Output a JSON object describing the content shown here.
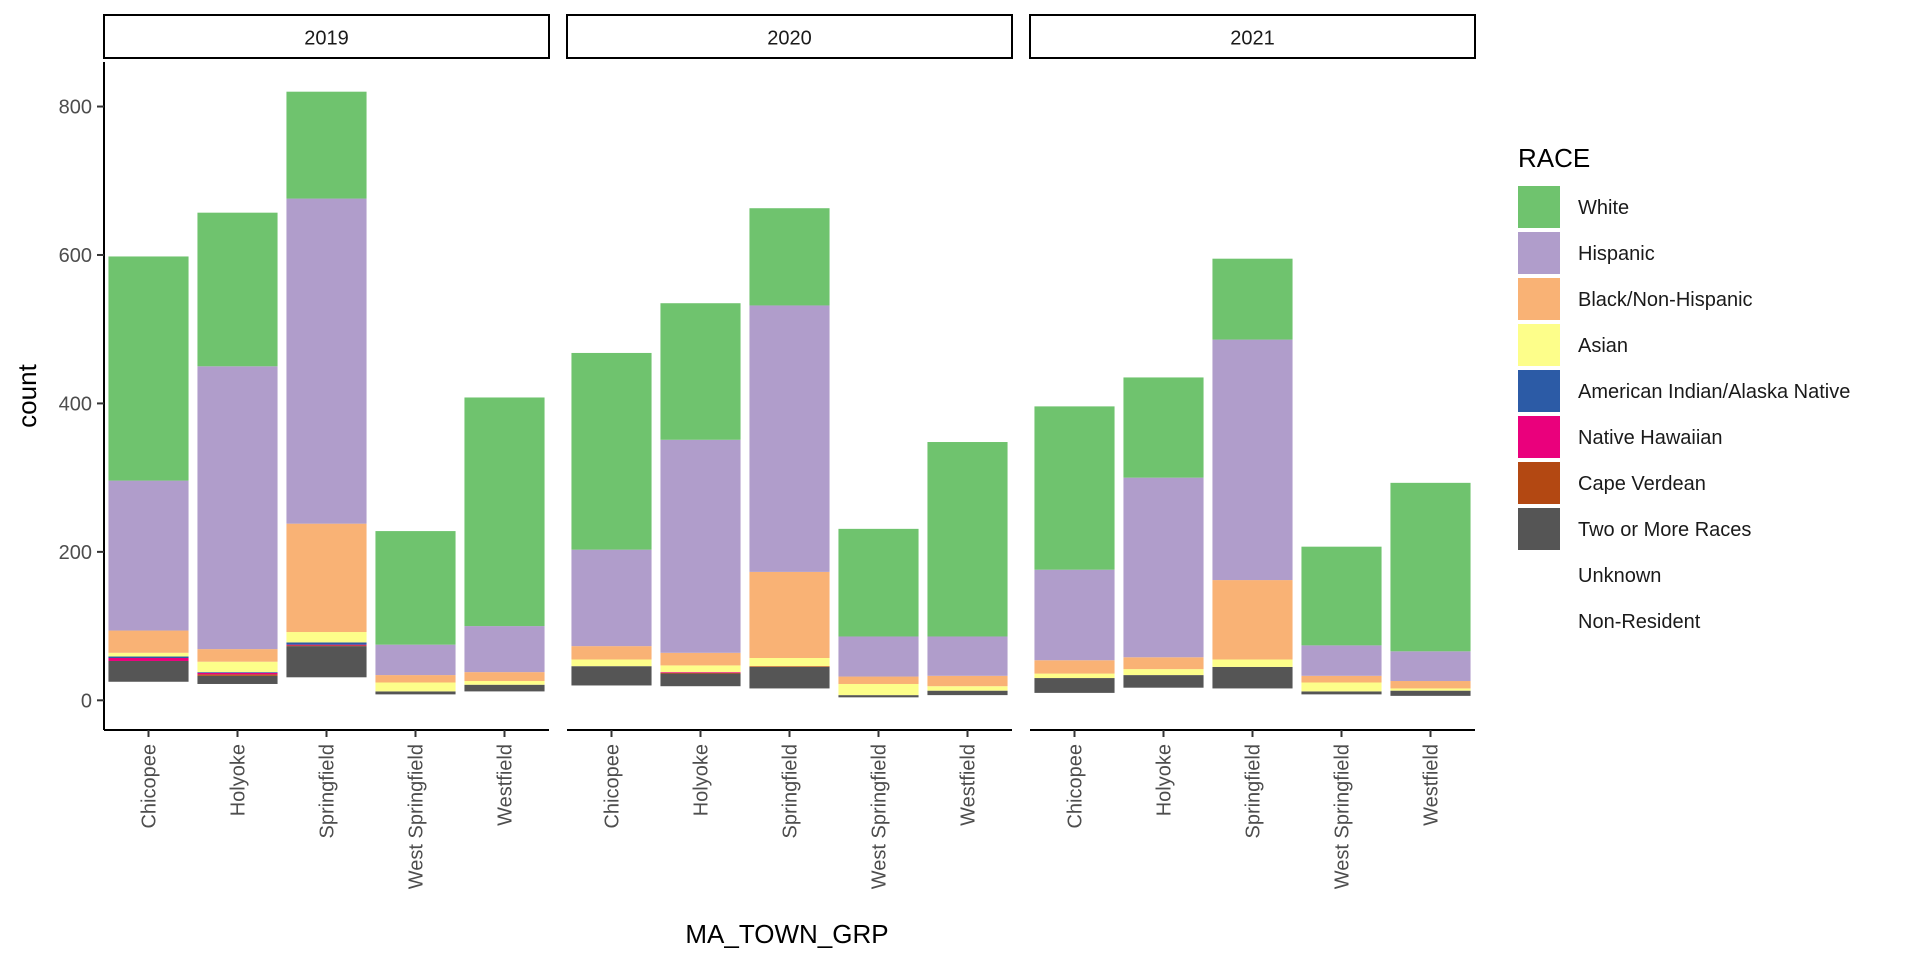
{
  "chart_data": {
    "type": "bar",
    "stacked": true,
    "facet_by": "year",
    "facets": [
      "2019",
      "2020",
      "2021"
    ],
    "categories": [
      "Chicopee",
      "Holyoke",
      "Springfield",
      "West Springfield",
      "Westfield"
    ],
    "xlabel": "MA_TOWN_GRP",
    "ylabel": "count",
    "ylim": [
      -40,
      860
    ],
    "yticks": [
      0,
      200,
      400,
      600,
      800
    ],
    "legend": {
      "title": "RACE",
      "placement": "right",
      "entries": [
        {
          "name": "White",
          "color": "#6fc36e",
          "swatch": true
        },
        {
          "name": "Hispanic",
          "color": "#b09dcb",
          "swatch": true
        },
        {
          "name": "Black/Non-Hispanic",
          "color": "#f9b275",
          "swatch": true
        },
        {
          "name": "Asian",
          "color": "#fdfe8a",
          "swatch": true
        },
        {
          "name": "American Indian/Alaska Native",
          "color": "#2c5ba6",
          "swatch": true
        },
        {
          "name": "Native Hawaiian",
          "color": "#ea007c",
          "swatch": true
        },
        {
          "name": "Cape Verdean",
          "color": "#b34812",
          "swatch": true
        },
        {
          "name": "Two or More Races",
          "color": "#555555",
          "swatch": true
        },
        {
          "name": "Unknown",
          "color": "#ffffff",
          "swatch": false
        },
        {
          "name": "Non-Resident",
          "color": "#ffffff",
          "swatch": false
        }
      ]
    },
    "stack_order_bottom_to_top": [
      "Non-Resident",
      "Unknown",
      "Two or More Races",
      "Cape Verdean",
      "Native Hawaiian",
      "American Indian/Alaska Native",
      "Asian",
      "Black/Non-Hispanic",
      "Hispanic",
      "White"
    ],
    "data": {
      "2019": {
        "Chicopee": {
          "Non-Resident": 0,
          "Unknown": 25,
          "Two or More Races": 28,
          "Cape Verdean": 0,
          "Native Hawaiian": 4,
          "American Indian/Alaska Native": 2,
          "Asian": 5,
          "Black/Non-Hispanic": 30,
          "Hispanic": 202,
          "White": 302
        },
        "Holyoke": {
          "Non-Resident": 0,
          "Unknown": 22,
          "Two or More Races": 11,
          "Cape Verdean": 2,
          "Native Hawaiian": 2,
          "American Indian/Alaska Native": 1,
          "Asian": 14,
          "Black/Non-Hispanic": 17,
          "Hispanic": 381,
          "White": 207
        },
        "Springfield": {
          "Non-Resident": 0,
          "Unknown": 31,
          "Two or More Races": 42,
          "Cape Verdean": 1,
          "Native Hawaiian": 1,
          "American Indian/Alaska Native": 3,
          "Asian": 14,
          "Black/Non-Hispanic": 146,
          "Hispanic": 438,
          "White": 144
        },
        "West Springfield": {
          "Non-Resident": 0,
          "Unknown": 8,
          "Two or More Races": 4,
          "Cape Verdean": 0,
          "Native Hawaiian": 0,
          "American Indian/Alaska Native": 0,
          "Asian": 12,
          "Black/Non-Hispanic": 10,
          "Hispanic": 41,
          "White": 153
        },
        "Westfield": {
          "Non-Resident": 0,
          "Unknown": 12,
          "Two or More Races": 9,
          "Cape Verdean": 0,
          "Native Hawaiian": 0,
          "American Indian/Alaska Native": 0,
          "Asian": 5,
          "Black/Non-Hispanic": 12,
          "Hispanic": 62,
          "White": 308
        }
      },
      "2020": {
        "Chicopee": {
          "Non-Resident": 0,
          "Unknown": 20,
          "Two or More Races": 26,
          "Cape Verdean": 0,
          "Native Hawaiian": 0,
          "American Indian/Alaska Native": 0,
          "Asian": 9,
          "Black/Non-Hispanic": 18,
          "Hispanic": 130,
          "White": 265
        },
        "Holyoke": {
          "Non-Resident": 0,
          "Unknown": 19,
          "Two or More Races": 17,
          "Cape Verdean": 1,
          "Native Hawaiian": 1,
          "American Indian/Alaska Native": 0,
          "Asian": 9,
          "Black/Non-Hispanic": 17,
          "Hispanic": 287,
          "White": 184
        },
        "Springfield": {
          "Non-Resident": 0,
          "Unknown": 16,
          "Two or More Races": 29,
          "Cape Verdean": 1,
          "Native Hawaiian": 0,
          "American Indian/Alaska Native": 0,
          "Asian": 11,
          "Black/Non-Hispanic": 116,
          "Hispanic": 359,
          "White": 131
        },
        "West Springfield": {
          "Non-Resident": 0,
          "Unknown": 4,
          "Two or More Races": 3,
          "Cape Verdean": 0,
          "Native Hawaiian": 0,
          "American Indian/Alaska Native": 0,
          "Asian": 15,
          "Black/Non-Hispanic": 10,
          "Hispanic": 54,
          "White": 145
        },
        "Westfield": {
          "Non-Resident": 0,
          "Unknown": 7,
          "Two or More Races": 6,
          "Cape Verdean": 0,
          "Native Hawaiian": 0,
          "American Indian/Alaska Native": 0,
          "Asian": 6,
          "Black/Non-Hispanic": 14,
          "Hispanic": 53,
          "White": 262
        }
      },
      "2021": {
        "Chicopee": {
          "Non-Resident": 0,
          "Unknown": 10,
          "Two or More Races": 20,
          "Cape Verdean": 0,
          "Native Hawaiian": 0,
          "American Indian/Alaska Native": 0,
          "Asian": 6,
          "Black/Non-Hispanic": 18,
          "Hispanic": 122,
          "White": 220
        },
        "Holyoke": {
          "Non-Resident": 0,
          "Unknown": 17,
          "Two or More Races": 17,
          "Cape Verdean": 0,
          "Native Hawaiian": 0,
          "American Indian/Alaska Native": 0,
          "Asian": 8,
          "Black/Non-Hispanic": 16,
          "Hispanic": 242,
          "White": 135
        },
        "Springfield": {
          "Non-Resident": 0,
          "Unknown": 16,
          "Two or More Races": 29,
          "Cape Verdean": 0,
          "Native Hawaiian": 0,
          "American Indian/Alaska Native": 0,
          "Asian": 10,
          "Black/Non-Hispanic": 107,
          "Hispanic": 324,
          "White": 109
        },
        "West Springfield": {
          "Non-Resident": 0,
          "Unknown": 8,
          "Two or More Races": 4,
          "Cape Verdean": 0,
          "Native Hawaiian": 0,
          "American Indian/Alaska Native": 0,
          "Asian": 12,
          "Black/Non-Hispanic": 9,
          "Hispanic": 41,
          "White": 133
        },
        "Westfield": {
          "Non-Resident": 0,
          "Unknown": 6,
          "Two or More Races": 7,
          "Cape Verdean": 0,
          "Native Hawaiian": 0,
          "American Indian/Alaska Native": 0,
          "Asian": 3,
          "Black/Non-Hispanic": 10,
          "Hispanic": 40,
          "White": 227
        }
      }
    },
    "grid": false
  }
}
